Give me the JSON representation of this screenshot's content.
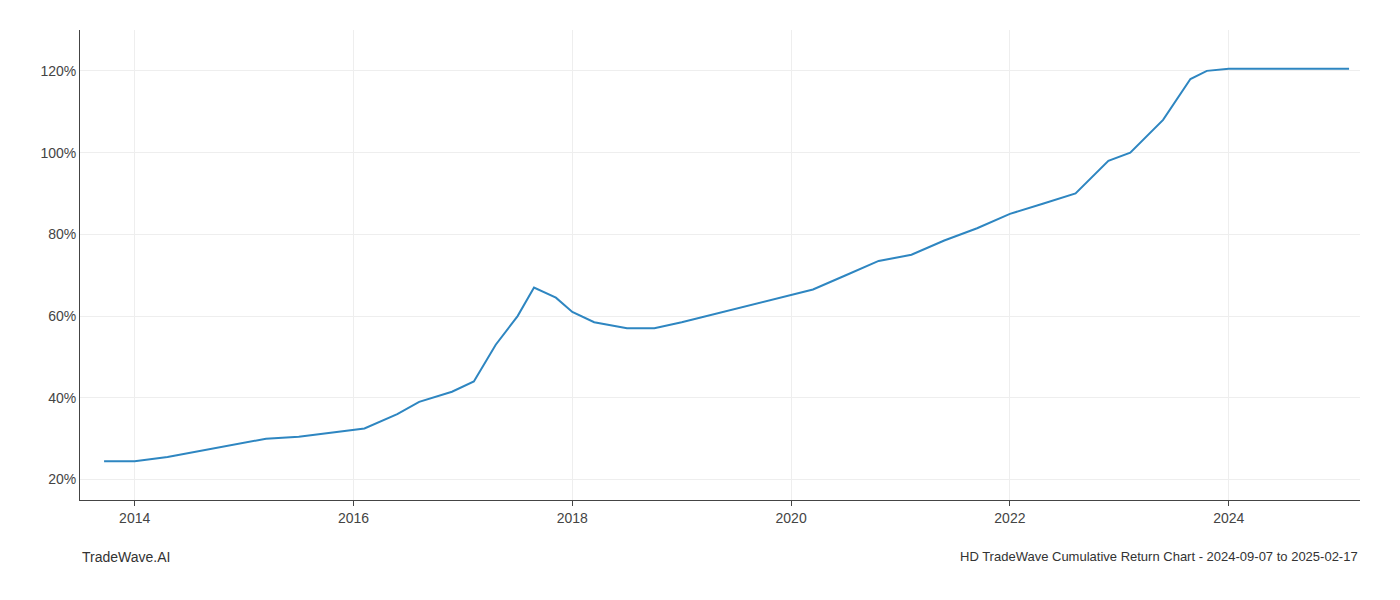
{
  "chart_data": {
    "type": "line",
    "title": "HD TradeWave Cumulative Return Chart - 2024-09-07 to 2025-02-17",
    "annotations": [
      "TradeWave.AI"
    ],
    "color": "#2e86c1",
    "x": [
      2013.72,
      2014.0,
      2014.3,
      2014.6,
      2014.9,
      2015.2,
      2015.5,
      2015.8,
      2016.1,
      2016.4,
      2016.6,
      2016.9,
      2017.1,
      2017.3,
      2017.5,
      2017.65,
      2017.85,
      2018.0,
      2018.2,
      2018.5,
      2018.75,
      2019.0,
      2019.3,
      2019.6,
      2019.9,
      2020.2,
      2020.5,
      2020.8,
      2021.1,
      2021.4,
      2021.7,
      2022.0,
      2022.3,
      2022.6,
      2022.9,
      2023.1,
      2023.4,
      2023.65,
      2023.8,
      2024.0,
      2024.3,
      2024.7,
      2025.1
    ],
    "values": [
      24.5,
      24.5,
      25.5,
      27.0,
      28.5,
      30.0,
      30.5,
      31.5,
      32.5,
      36.0,
      39.0,
      41.5,
      44.0,
      53.0,
      60.0,
      67.0,
      64.5,
      61.0,
      58.5,
      57.0,
      57.0,
      58.5,
      60.5,
      62.5,
      64.5,
      66.5,
      70.0,
      73.5,
      75.0,
      78.5,
      81.5,
      85.0,
      87.5,
      90.0,
      98.0,
      100.0,
      108.0,
      118.0,
      120.0,
      120.5,
      120.5,
      120.5,
      120.5
    ],
    "xlim": [
      2013.5,
      2025.2
    ],
    "ylim": [
      15,
      130
    ],
    "xticks": [
      2014,
      2016,
      2018,
      2020,
      2022,
      2024
    ],
    "yticks": [
      {
        "value": 20,
        "label": "20%"
      },
      {
        "value": 40,
        "label": "40%"
      },
      {
        "value": 60,
        "label": "60%"
      },
      {
        "value": 80,
        "label": "80%"
      },
      {
        "value": 100,
        "label": "100%"
      },
      {
        "value": 120,
        "label": "120%"
      }
    ],
    "grid": true
  }
}
